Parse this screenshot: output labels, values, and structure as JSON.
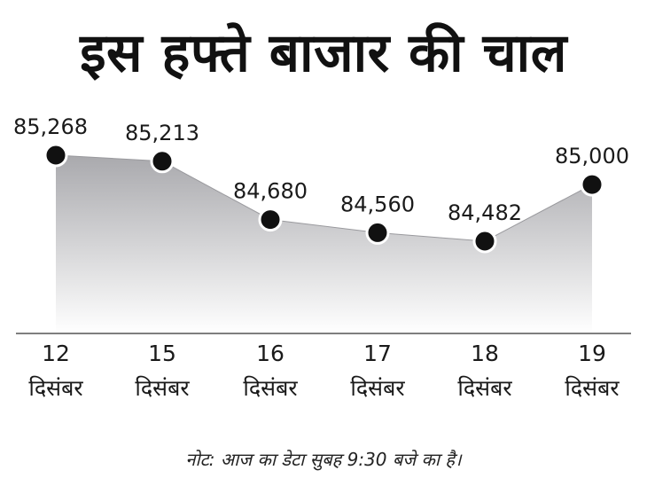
{
  "chart_data": {
    "type": "area",
    "title": "इस हफ्ते बाजार की चाल",
    "categories": [
      [
        "12",
        "दिसंबर"
      ],
      [
        "15",
        "दिसंबर"
      ],
      [
        "16",
        "दिसंबर"
      ],
      [
        "17",
        "दिसंबर"
      ],
      [
        "18",
        "दिसंबर"
      ],
      [
        "19",
        "दिसंबर"
      ]
    ],
    "values": [
      85268,
      85213,
      84680,
      84560,
      84482,
      85000
    ],
    "value_labels": [
      "85,268",
      "85,213",
      "84,680",
      "84,560",
      "84,482",
      "85,000"
    ],
    "note": "नोट: आज का डेटा सुबह 9:30 बजे का है।",
    "grid": false,
    "legend": "none",
    "colors": {
      "area_top": "#a9a9ad",
      "area_bottom": "#ffffff",
      "marker": "#111111",
      "marker_stroke": "#ffffff",
      "axis": "#555555"
    }
  }
}
